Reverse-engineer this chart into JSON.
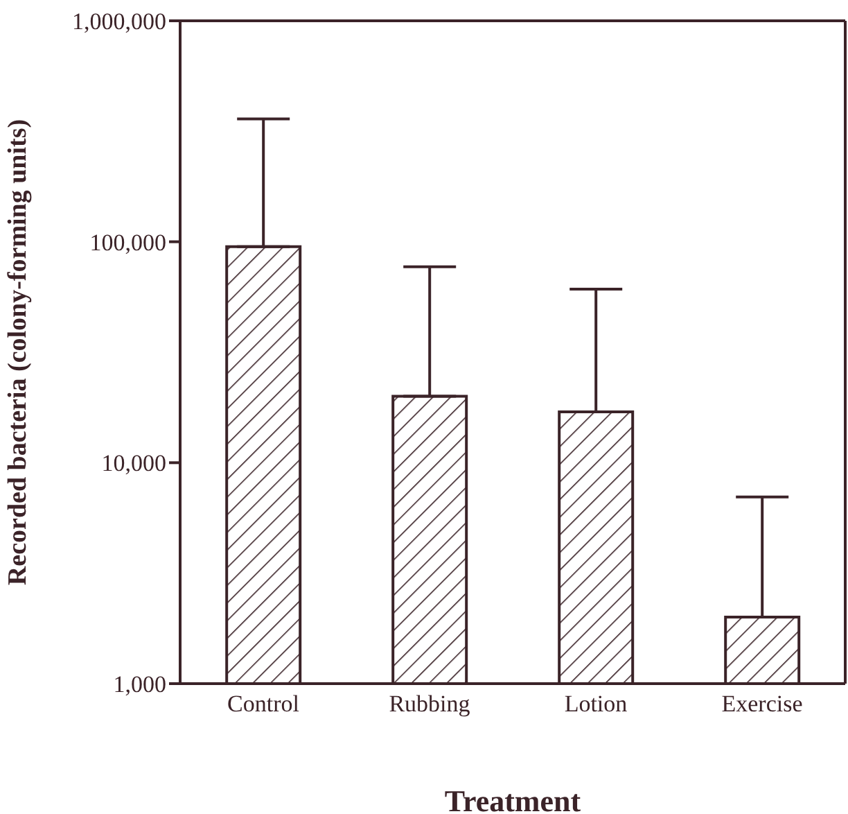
{
  "chart_data": {
    "type": "bar",
    "xlabel": "Treatment",
    "ylabel": "Recorded bacteria (colony-forming units)",
    "categories": [
      "Control",
      "Rubbing",
      "Lotion",
      "Exercise"
    ],
    "values": [
      95000,
      20000,
      17000,
      2000
    ],
    "errors": [
      [
        95000,
        360000
      ],
      [
        20000,
        77000
      ],
      [
        17000,
        61000
      ],
      [
        2000,
        7000
      ]
    ],
    "color": "#3b2328",
    "log": true,
    "ylim": [
      1000,
      1000000
    ],
    "yticks": [
      {
        "value": 1000,
        "label": "1,000"
      },
      {
        "value": 10000,
        "label": "10,000"
      },
      {
        "value": 100000,
        "label": "100,000"
      },
      {
        "value": 1000000,
        "label": "1,000,000"
      }
    ],
    "grid": false,
    "legend": false
  }
}
